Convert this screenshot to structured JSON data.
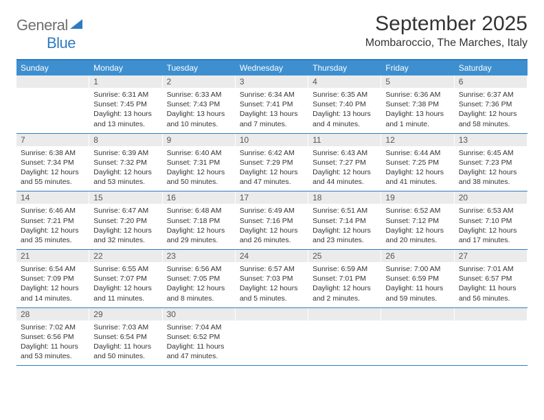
{
  "brand": {
    "part1": "General",
    "part2": "Blue"
  },
  "title": "September 2025",
  "location": "Mombaroccio, The Marches, Italy",
  "colors": {
    "accent": "#2f7bbf",
    "header_bg": "#3d8fcf",
    "daynum_bg": "#ebebeb",
    "text": "#333333"
  },
  "days_of_week": [
    "Sunday",
    "Monday",
    "Tuesday",
    "Wednesday",
    "Thursday",
    "Friday",
    "Saturday"
  ],
  "weeks": [
    [
      {
        "n": "",
        "sunrise": "",
        "sunset": "",
        "daylight": ""
      },
      {
        "n": "1",
        "sunrise": "Sunrise: 6:31 AM",
        "sunset": "Sunset: 7:45 PM",
        "daylight": "Daylight: 13 hours and 13 minutes."
      },
      {
        "n": "2",
        "sunrise": "Sunrise: 6:33 AM",
        "sunset": "Sunset: 7:43 PM",
        "daylight": "Daylight: 13 hours and 10 minutes."
      },
      {
        "n": "3",
        "sunrise": "Sunrise: 6:34 AM",
        "sunset": "Sunset: 7:41 PM",
        "daylight": "Daylight: 13 hours and 7 minutes."
      },
      {
        "n": "4",
        "sunrise": "Sunrise: 6:35 AM",
        "sunset": "Sunset: 7:40 PM",
        "daylight": "Daylight: 13 hours and 4 minutes."
      },
      {
        "n": "5",
        "sunrise": "Sunrise: 6:36 AM",
        "sunset": "Sunset: 7:38 PM",
        "daylight": "Daylight: 13 hours and 1 minute."
      },
      {
        "n": "6",
        "sunrise": "Sunrise: 6:37 AM",
        "sunset": "Sunset: 7:36 PM",
        "daylight": "Daylight: 12 hours and 58 minutes."
      }
    ],
    [
      {
        "n": "7",
        "sunrise": "Sunrise: 6:38 AM",
        "sunset": "Sunset: 7:34 PM",
        "daylight": "Daylight: 12 hours and 55 minutes."
      },
      {
        "n": "8",
        "sunrise": "Sunrise: 6:39 AM",
        "sunset": "Sunset: 7:32 PM",
        "daylight": "Daylight: 12 hours and 53 minutes."
      },
      {
        "n": "9",
        "sunrise": "Sunrise: 6:40 AM",
        "sunset": "Sunset: 7:31 PM",
        "daylight": "Daylight: 12 hours and 50 minutes."
      },
      {
        "n": "10",
        "sunrise": "Sunrise: 6:42 AM",
        "sunset": "Sunset: 7:29 PM",
        "daylight": "Daylight: 12 hours and 47 minutes."
      },
      {
        "n": "11",
        "sunrise": "Sunrise: 6:43 AM",
        "sunset": "Sunset: 7:27 PM",
        "daylight": "Daylight: 12 hours and 44 minutes."
      },
      {
        "n": "12",
        "sunrise": "Sunrise: 6:44 AM",
        "sunset": "Sunset: 7:25 PM",
        "daylight": "Daylight: 12 hours and 41 minutes."
      },
      {
        "n": "13",
        "sunrise": "Sunrise: 6:45 AM",
        "sunset": "Sunset: 7:23 PM",
        "daylight": "Daylight: 12 hours and 38 minutes."
      }
    ],
    [
      {
        "n": "14",
        "sunrise": "Sunrise: 6:46 AM",
        "sunset": "Sunset: 7:21 PM",
        "daylight": "Daylight: 12 hours and 35 minutes."
      },
      {
        "n": "15",
        "sunrise": "Sunrise: 6:47 AM",
        "sunset": "Sunset: 7:20 PM",
        "daylight": "Daylight: 12 hours and 32 minutes."
      },
      {
        "n": "16",
        "sunrise": "Sunrise: 6:48 AM",
        "sunset": "Sunset: 7:18 PM",
        "daylight": "Daylight: 12 hours and 29 minutes."
      },
      {
        "n": "17",
        "sunrise": "Sunrise: 6:49 AM",
        "sunset": "Sunset: 7:16 PM",
        "daylight": "Daylight: 12 hours and 26 minutes."
      },
      {
        "n": "18",
        "sunrise": "Sunrise: 6:51 AM",
        "sunset": "Sunset: 7:14 PM",
        "daylight": "Daylight: 12 hours and 23 minutes."
      },
      {
        "n": "19",
        "sunrise": "Sunrise: 6:52 AM",
        "sunset": "Sunset: 7:12 PM",
        "daylight": "Daylight: 12 hours and 20 minutes."
      },
      {
        "n": "20",
        "sunrise": "Sunrise: 6:53 AM",
        "sunset": "Sunset: 7:10 PM",
        "daylight": "Daylight: 12 hours and 17 minutes."
      }
    ],
    [
      {
        "n": "21",
        "sunrise": "Sunrise: 6:54 AM",
        "sunset": "Sunset: 7:09 PM",
        "daylight": "Daylight: 12 hours and 14 minutes."
      },
      {
        "n": "22",
        "sunrise": "Sunrise: 6:55 AM",
        "sunset": "Sunset: 7:07 PM",
        "daylight": "Daylight: 12 hours and 11 minutes."
      },
      {
        "n": "23",
        "sunrise": "Sunrise: 6:56 AM",
        "sunset": "Sunset: 7:05 PM",
        "daylight": "Daylight: 12 hours and 8 minutes."
      },
      {
        "n": "24",
        "sunrise": "Sunrise: 6:57 AM",
        "sunset": "Sunset: 7:03 PM",
        "daylight": "Daylight: 12 hours and 5 minutes."
      },
      {
        "n": "25",
        "sunrise": "Sunrise: 6:59 AM",
        "sunset": "Sunset: 7:01 PM",
        "daylight": "Daylight: 12 hours and 2 minutes."
      },
      {
        "n": "26",
        "sunrise": "Sunrise: 7:00 AM",
        "sunset": "Sunset: 6:59 PM",
        "daylight": "Daylight: 11 hours and 59 minutes."
      },
      {
        "n": "27",
        "sunrise": "Sunrise: 7:01 AM",
        "sunset": "Sunset: 6:57 PM",
        "daylight": "Daylight: 11 hours and 56 minutes."
      }
    ],
    [
      {
        "n": "28",
        "sunrise": "Sunrise: 7:02 AM",
        "sunset": "Sunset: 6:56 PM",
        "daylight": "Daylight: 11 hours and 53 minutes."
      },
      {
        "n": "29",
        "sunrise": "Sunrise: 7:03 AM",
        "sunset": "Sunset: 6:54 PM",
        "daylight": "Daylight: 11 hours and 50 minutes."
      },
      {
        "n": "30",
        "sunrise": "Sunrise: 7:04 AM",
        "sunset": "Sunset: 6:52 PM",
        "daylight": "Daylight: 11 hours and 47 minutes."
      },
      {
        "n": "",
        "sunrise": "",
        "sunset": "",
        "daylight": ""
      },
      {
        "n": "",
        "sunrise": "",
        "sunset": "",
        "daylight": ""
      },
      {
        "n": "",
        "sunrise": "",
        "sunset": "",
        "daylight": ""
      },
      {
        "n": "",
        "sunrise": "",
        "sunset": "",
        "daylight": ""
      }
    ]
  ]
}
